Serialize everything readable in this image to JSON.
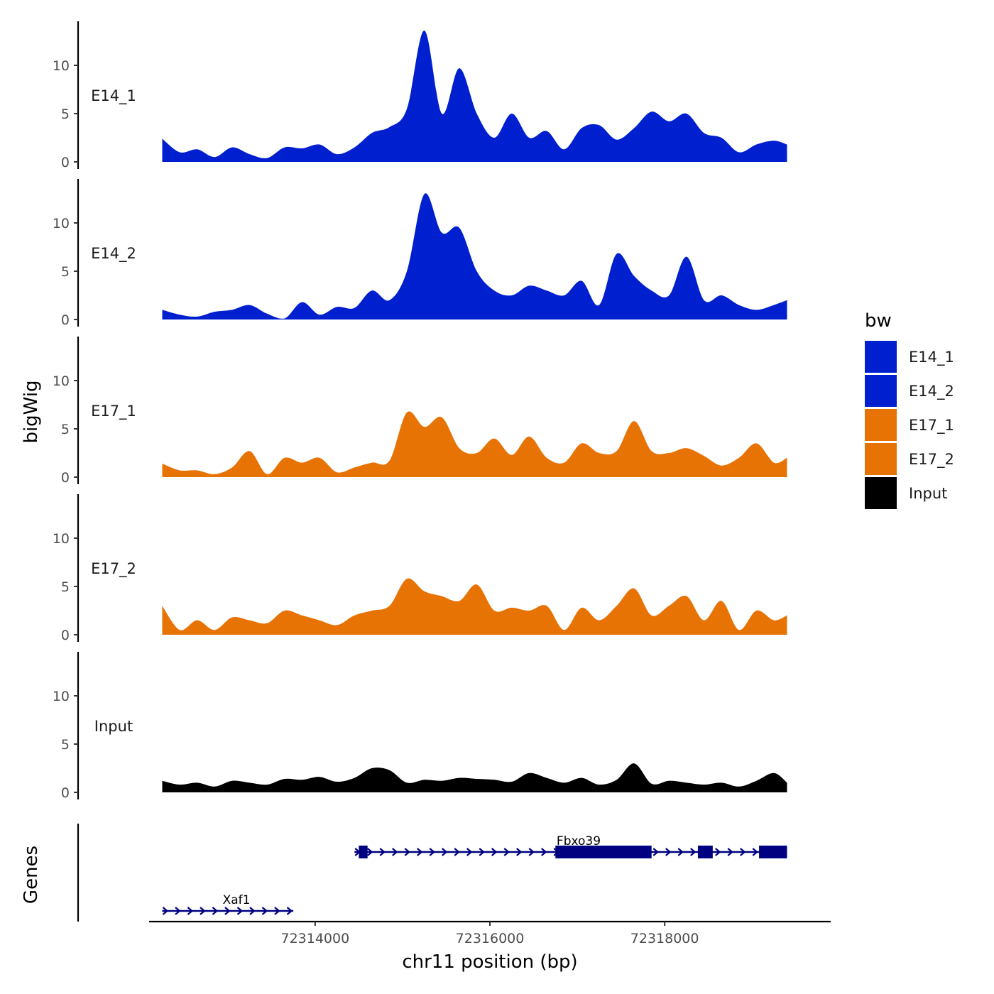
{
  "chart_data": {
    "type": "area",
    "xlabel": "chr11 position (bp)",
    "ylabel": "bigWig",
    "genes_label": "Genes",
    "xlim": [
      72312100,
      72319900
    ],
    "x_ticks": [
      72314000,
      72316000,
      72318000
    ],
    "x_tick_labels": [
      "72314000",
      "72316000",
      "72318000"
    ],
    "ylim": [
      0,
      14
    ],
    "y_ticks": [
      0,
      5,
      10
    ],
    "y_tick_labels": [
      "0",
      "5",
      "10"
    ],
    "x": [
      72312250,
      72312450,
      72312650,
      72312850,
      72313050,
      72313250,
      72313450,
      72313650,
      72313850,
      72314050,
      72314250,
      72314450,
      72314650,
      72314850,
      72315050,
      72315250,
      72315450,
      72315650,
      72315850,
      72316050,
      72316250,
      72316450,
      72316650,
      72316850,
      72317050,
      72317250,
      72317450,
      72317650,
      72317850,
      72318050,
      72318250,
      72318450,
      72318650,
      72318850,
      72319050,
      72319250,
      72319400
    ],
    "series": [
      {
        "name": "E14_1",
        "color": "#0020d0",
        "values": [
          2.4,
          1.0,
          1.3,
          0.5,
          1.5,
          0.8,
          0.4,
          1.5,
          1.4,
          1.8,
          0.8,
          1.5,
          3.0,
          3.6,
          5.5,
          13.6,
          5.0,
          9.7,
          5.0,
          2.5,
          5.0,
          2.5,
          3.2,
          1.3,
          3.5,
          3.8,
          2.3,
          3.5,
          5.2,
          4.2,
          5.0,
          3.0,
          2.5,
          1.0,
          1.8,
          2.2,
          1.8
        ]
      },
      {
        "name": "E14_2",
        "color": "#0020d0",
        "values": [
          1.0,
          0.5,
          0.3,
          0.8,
          1.0,
          1.5,
          0.6,
          0.1,
          1.8,
          0.5,
          1.3,
          1.2,
          3.0,
          2.0,
          5.0,
          13.0,
          9.0,
          9.5,
          5.0,
          3.0,
          2.5,
          3.5,
          3.0,
          2.5,
          4.0,
          1.5,
          6.8,
          4.5,
          3.0,
          2.5,
          6.5,
          2.0,
          2.5,
          1.5,
          1.0,
          1.5,
          2.0
        ]
      },
      {
        "name": "E17_1",
        "color": "#e87305",
        "values": [
          1.4,
          0.7,
          0.7,
          0.3,
          1.0,
          2.7,
          0.3,
          2.0,
          1.5,
          2.0,
          0.5,
          1.0,
          1.5,
          1.7,
          6.7,
          5.2,
          6.2,
          3.0,
          2.5,
          4.0,
          2.3,
          4.2,
          2.0,
          1.5,
          3.5,
          2.5,
          2.7,
          5.8,
          2.7,
          2.5,
          3.0,
          2.2,
          1.2,
          2.0,
          3.5,
          1.5,
          2.0
        ]
      },
      {
        "name": "E17_2",
        "color": "#e87305",
        "values": [
          3.0,
          0.5,
          1.5,
          0.5,
          1.8,
          1.5,
          1.2,
          2.5,
          2.0,
          1.5,
          1.0,
          2.0,
          2.5,
          3.0,
          5.8,
          4.5,
          4.0,
          3.5,
          5.2,
          2.5,
          2.8,
          2.5,
          3.0,
          0.5,
          2.8,
          1.5,
          3.0,
          4.8,
          2.0,
          3.0,
          4.0,
          1.5,
          3.5,
          0.5,
          2.5,
          1.5,
          2.0
        ]
      },
      {
        "name": "Input",
        "color": "#000000",
        "values": [
          1.2,
          0.8,
          1.0,
          0.6,
          1.2,
          1.0,
          0.8,
          1.4,
          1.3,
          1.6,
          1.1,
          1.5,
          2.5,
          2.3,
          1.0,
          1.3,
          1.2,
          1.5,
          1.4,
          1.3,
          1.1,
          2.0,
          1.5,
          1.0,
          1.5,
          0.8,
          1.3,
          3.0,
          0.9,
          1.2,
          1.0,
          0.8,
          1.0,
          0.6,
          1.2,
          2.0,
          1.0
        ]
      }
    ],
    "legend": {
      "title": "bw",
      "position": "right",
      "entries": [
        {
          "label": "E14_1",
          "color": "#0020d0"
        },
        {
          "label": "E14_2",
          "color": "#0020d0"
        },
        {
          "label": "E17_1",
          "color": "#e87305"
        },
        {
          "label": "E17_2",
          "color": "#e87305"
        },
        {
          "label": "Input",
          "color": "#000000"
        }
      ]
    },
    "genes": [
      {
        "name": "Fbxo39",
        "start": 72314450,
        "end": 72319400,
        "strand": "+",
        "exons": [
          [
            72314500,
            72314600
          ],
          [
            72316750,
            72317850
          ],
          [
            72318380,
            72318550
          ],
          [
            72319080,
            72319400
          ]
        ],
        "color": "#000080"
      },
      {
        "name": "Xaf1",
        "start": 72312250,
        "end": 72313750,
        "strand": "+",
        "exons": [],
        "color": "#000080"
      }
    ]
  }
}
